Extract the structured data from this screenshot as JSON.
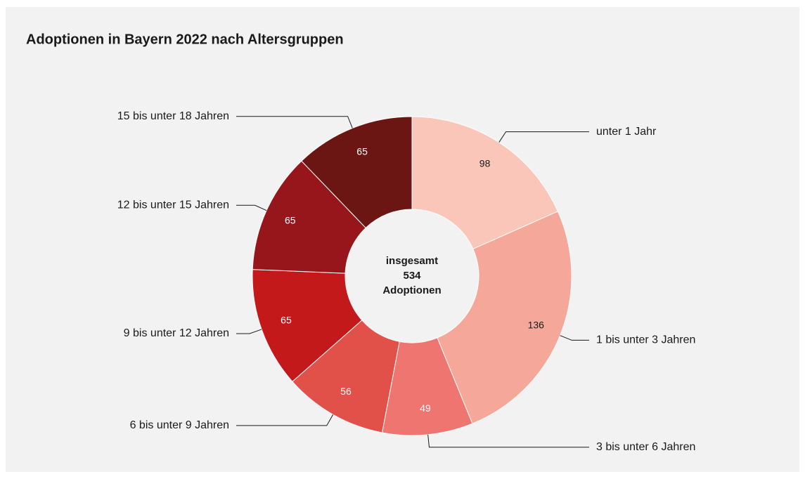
{
  "chart_data": {
    "type": "donut",
    "title": "Adoptionen in Bayern 2022 nach Altersgruppen",
    "categories": [
      "unter 1 Jahr",
      "1 bis unter 3 Jahren",
      "3 bis unter 6 Jahren",
      "6 bis unter 9 Jahren",
      "9 bis unter 12 Jahren",
      "12 bis unter 15 Jahren",
      "15 bis unter 18 Jahren"
    ],
    "values": [
      98,
      136,
      49,
      56,
      65,
      65,
      65
    ],
    "colors": [
      "#f9c6b9",
      "#f5a89a",
      "#ef7670",
      "#e2504a",
      "#c4191a",
      "#96161c",
      "#6b1613"
    ],
    "center_label_top": "insgesamt",
    "total": 534,
    "center_label_bottom": "Adoptionen"
  }
}
